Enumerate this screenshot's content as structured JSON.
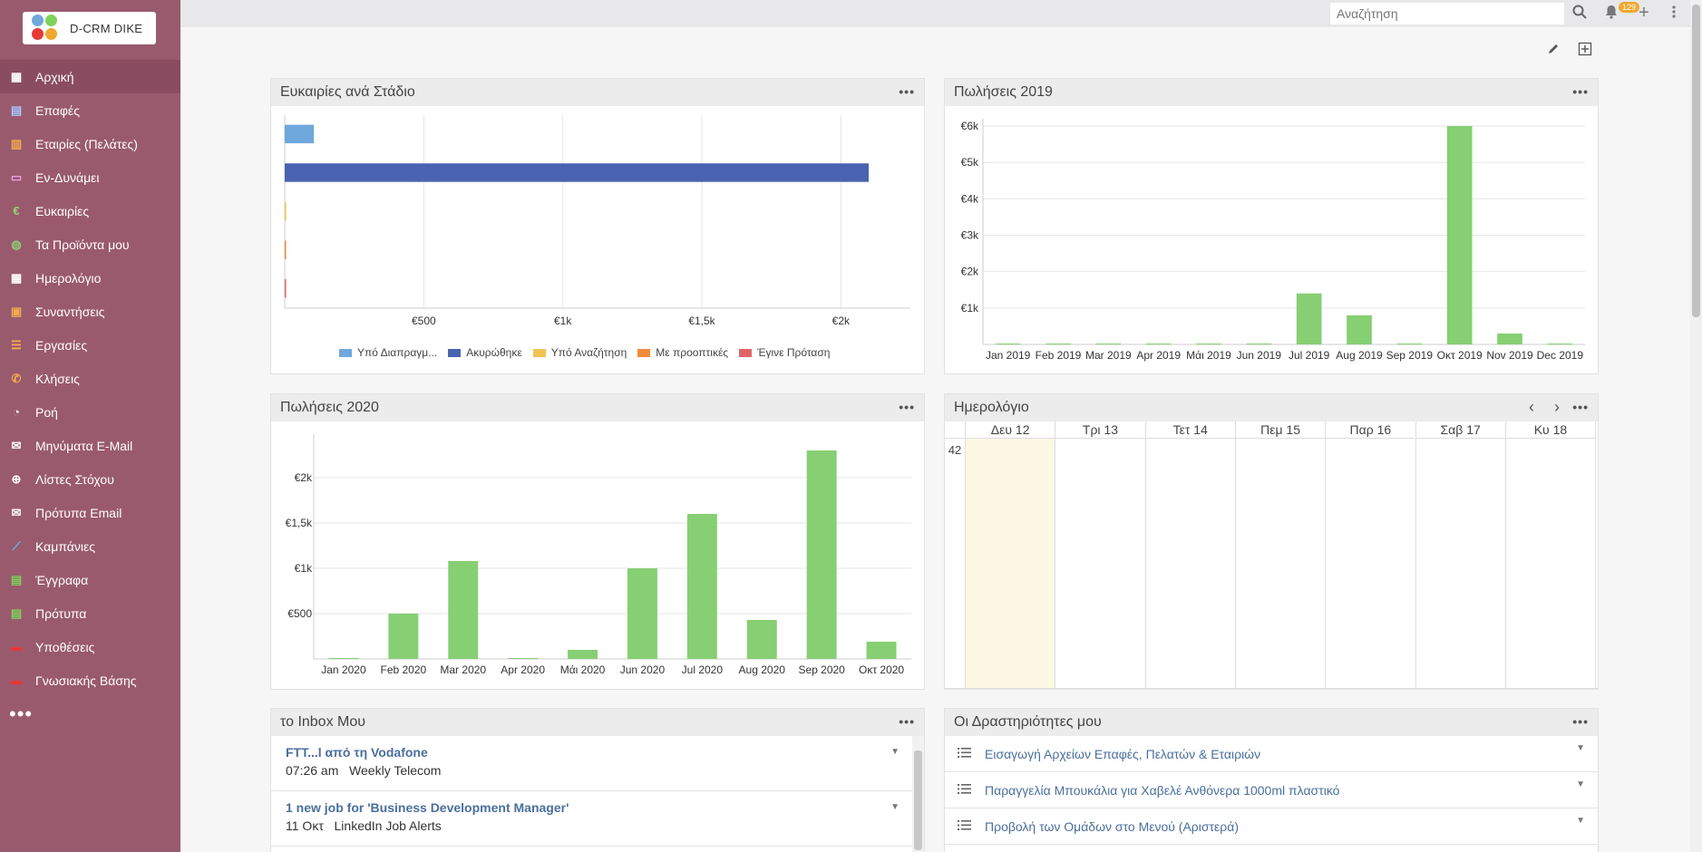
{
  "app": {
    "logo_text": "D-CRM DIKE"
  },
  "sidebar": {
    "items": [
      {
        "label": "Αρχική",
        "icon": "home-grid-icon",
        "color": "#ffffff",
        "active": true
      },
      {
        "label": "Επαφές",
        "icon": "contacts-icon",
        "color": "#a6c8ff"
      },
      {
        "label": "Εταιρίες (Πελάτες)",
        "icon": "building-icon",
        "color": "#f0ad4e"
      },
      {
        "label": "Εν-Δυνάμει",
        "icon": "leads-card-icon",
        "color": "#e9a0e9"
      },
      {
        "label": "Ευκαιρίες",
        "icon": "euro-icon",
        "color": "#9bd36f"
      },
      {
        "label": "Τα Προϊόντα μου",
        "icon": "products-icon",
        "color": "#8fc87a"
      },
      {
        "label": "Ημερολόγιο",
        "icon": "calendar-icon",
        "color": "#ffffff"
      },
      {
        "label": "Συναντήσεις",
        "icon": "meeting-icon",
        "color": "#f0ad4e"
      },
      {
        "label": "Εργασίες",
        "icon": "tasks-icon",
        "color": "#f0ad4e"
      },
      {
        "label": "Κλήσεις",
        "icon": "phone-icon",
        "color": "#f0ad4e"
      },
      {
        "label": "Ροή",
        "icon": "rss-icon",
        "color": "#ffffff"
      },
      {
        "label": "Μηνύματα E-Mail",
        "icon": "envelope-icon",
        "color": "#ffffff"
      },
      {
        "label": "Λίστες Στόχου",
        "icon": "crosshair-icon",
        "color": "#ffffff"
      },
      {
        "label": "Πρότυπα Email",
        "icon": "email-template-icon",
        "color": "#ffffff"
      },
      {
        "label": "Καμπάνιες",
        "icon": "chart-line-icon",
        "color": "#5bc0de"
      },
      {
        "label": "Έγγραφα",
        "icon": "document-icon",
        "color": "#7ed35a"
      },
      {
        "label": "Πρότυπα",
        "icon": "template-file-icon",
        "color": "#7ed35a"
      },
      {
        "label": "Υποθέσεις",
        "icon": "briefcase-icon",
        "color": "#e53935"
      },
      {
        "label": "Γνωσιακής Βάσης",
        "icon": "book-icon",
        "color": "#e53935"
      }
    ],
    "more_label": "•••"
  },
  "topbar": {
    "search_placeholder": "Αναζήτηση",
    "notification_count": "129"
  },
  "dashlets": {
    "opportunities": {
      "title": "Ευκαιρίες ανά Στάδιο",
      "menu": "•••"
    },
    "sales2019": {
      "title": "Πωλήσεις 2019",
      "menu": "•••"
    },
    "sales2020": {
      "title": "Πωλήσεις 2020",
      "menu": "•••"
    },
    "calendar": {
      "title": "Ημερολόγιο",
      "menu": "•••",
      "prev": "‹",
      "next": "›",
      "week_number": "42",
      "days": [
        "Δευ 12",
        "Τρι 13",
        "Τετ 14",
        "Πεμ 15",
        "Παρ 16",
        "Σαβ 17",
        "Κυ 18"
      ]
    },
    "inbox": {
      "title": "το Inbox Μου",
      "menu": "•••",
      "items": [
        {
          "subject": "FTT...l από τη Vodafone",
          "time": "07:26 am",
          "from": "Weekly Telecom"
        },
        {
          "subject": "1 new job for 'Business Development Manager'",
          "time": "11 Οκτ",
          "from": "LinkedIn Job Alerts"
        }
      ]
    },
    "activities": {
      "title": "Οι Δραστηριότητες μου",
      "menu": "•••",
      "items": [
        {
          "title": "Εισαγωγή Αρχείων Επαφές, Πελατών & Εταιριών"
        },
        {
          "title": "Παραγγελία Μπουκάλια για Χαβελέ Ανθόνερα 1000ml πλαστικό"
        },
        {
          "title": "Προβολή των Ομάδων στο Μενού (Αριστερά)"
        }
      ]
    }
  },
  "chart_data": [
    {
      "type": "bar",
      "orientation": "horizontal",
      "title": "Ευκαιρίες ανά Στάδιο",
      "categories": [
        "Υπό Διαπραγμ...",
        "Ακυρώθηκε",
        "Υπό Αναζήτηση",
        "Με προοπτικές",
        "Έγινε Πρόταση"
      ],
      "values": [
        105,
        2100,
        5,
        5,
        5
      ],
      "colors": [
        "#6fa8dc",
        "#4a63b0",
        "#f1c451",
        "#ef8d3c",
        "#e06666"
      ],
      "xticks": [
        "€500",
        "€1k",
        "€1,5k",
        "€2k"
      ],
      "xlim": [
        0,
        2250
      ],
      "legend": "bottom"
    },
    {
      "type": "bar",
      "title": "Πωλήσεις 2019",
      "categories": [
        "Jan 2019",
        "Feb 2019",
        "Mar 2019",
        "Apr 2019",
        "Μάι 2019",
        "Jun 2019",
        "Jul 2019",
        "Aug 2019",
        "Sep 2019",
        "Οκτ 2019",
        "Nov 2019",
        "Dec 2019"
      ],
      "values": [
        0,
        0,
        0,
        0,
        0,
        0,
        1400,
        800,
        0,
        6000,
        300,
        0
      ],
      "yticks": [
        "€1k",
        "€2k",
        "€3k",
        "€4k",
        "€5k",
        "€6k"
      ],
      "ylim": [
        0,
        6200
      ],
      "color": "#86cf73"
    },
    {
      "type": "bar",
      "title": "Πωλήσεις 2020",
      "categories": [
        "Jan 2020",
        "Feb 2020",
        "Mar 2020",
        "Apr 2020",
        "Μάι 2020",
        "Jun 2020",
        "Jul 2020",
        "Aug 2020",
        "Sep 2020",
        "Οκτ 2020"
      ],
      "values": [
        0,
        500,
        1080,
        0,
        100,
        1000,
        1600,
        430,
        2300,
        190
      ],
      "yticks": [
        "€500",
        "€1k",
        "€1,5k",
        "€2k"
      ],
      "ylim": [
        0,
        2480
      ],
      "color": "#86cf73"
    }
  ]
}
